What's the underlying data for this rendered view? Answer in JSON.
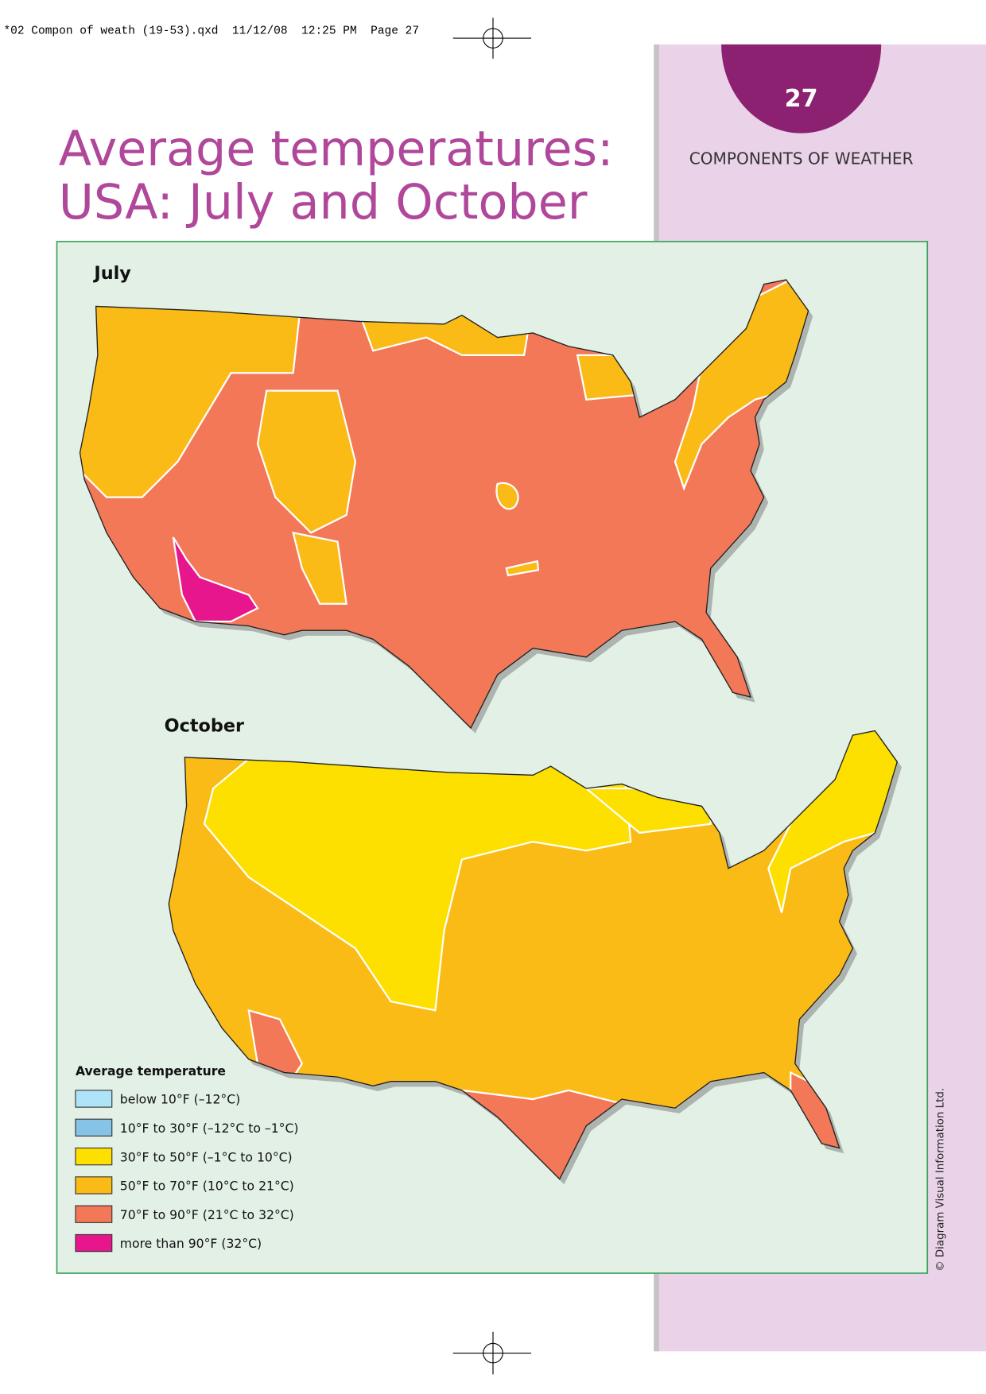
{
  "header": {
    "print_line": "*02 Compon of weath (19-53).qxd  11/12/08  12:25 PM  Page 27",
    "page_number": "27",
    "section": "COMPONENTS OF WEATHER"
  },
  "title": [
    "Average temperatures:",
    "USA: July and October"
  ],
  "maps": [
    {
      "label": "July"
    },
    {
      "label": "October"
    }
  ],
  "legend": {
    "title": "Average temperature",
    "items": [
      {
        "label": "below 10°F (–12°C)",
        "color": "#aee3f8"
      },
      {
        "label": "10°F to 30°F (–12°C to –1°C)",
        "color": "#86c3e6"
      },
      {
        "label": "30°F to 50°F (–1°C to 10°C)",
        "color": "#fde000"
      },
      {
        "label": "50°F to 70°F (10°C to 21°C)",
        "color": "#fbbb16"
      },
      {
        "label": "70°F to 90°F (21°C to 32°C)",
        "color": "#f27858"
      },
      {
        "label": "more than 90°F (32°C)",
        "color": "#e8168c"
      }
    ]
  },
  "credit": "© Diagram Visual Information Ltd."
}
